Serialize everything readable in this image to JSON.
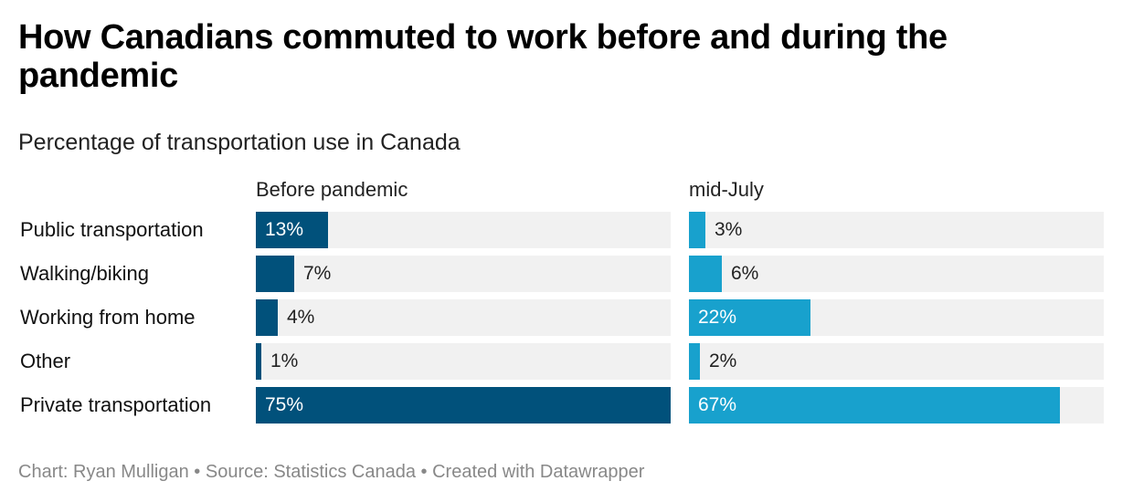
{
  "title": "How Canadians commuted to work before and during the pandemic",
  "subtitle": "Percentage of transportation use in Canada",
  "footer": "Chart: Ryan Mulligan • Source: Statistics Canada • Created with Datawrapper",
  "colors": {
    "before": "#01517b",
    "after": "#18a1cd",
    "track": "#f1f1f1"
  },
  "chart_data": {
    "type": "bar",
    "orientation": "horizontal",
    "categories": [
      "Public transportation",
      "Walking/biking",
      "Working from home",
      "Other",
      "Private transportation"
    ],
    "series": [
      {
        "name": "Before pandemic",
        "values": [
          13,
          7,
          4,
          1,
          75
        ],
        "labels": [
          "13%",
          "7%",
          "4%",
          "1%",
          "75%"
        ]
      },
      {
        "name": "mid-July",
        "values": [
          3,
          6,
          22,
          2,
          67
        ],
        "labels": [
          "3%",
          "6%",
          "22%",
          "2%",
          "67%"
        ]
      }
    ],
    "xlim": [
      0,
      75
    ],
    "unit": "%",
    "grid": false,
    "legend": "column-headers"
  }
}
